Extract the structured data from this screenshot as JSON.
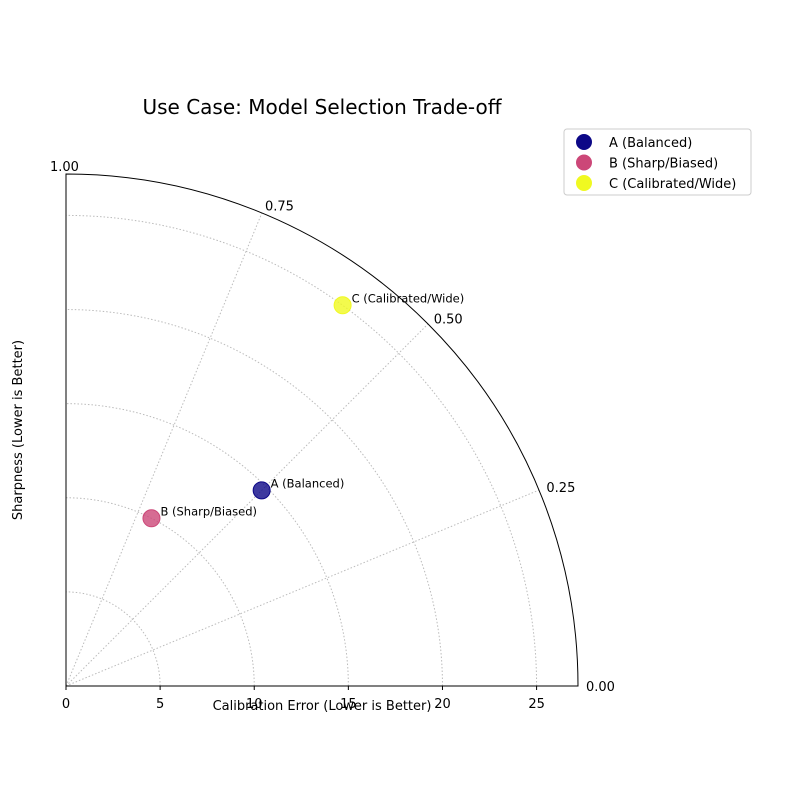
{
  "chart_data": {
    "type": "scatter",
    "title": "Use Case: Model Selection Trade-off",
    "xlabel": "Calibration Error (Lower is Better)",
    "ylabel": "Sharpness (Lower is Better)",
    "xlim": [
      0,
      27.2
    ],
    "x_ticks": [
      "0",
      "5",
      "10",
      "15",
      "20",
      "25"
    ],
    "angle_ticks": [
      "0.00",
      "0.25",
      "0.50",
      "0.75",
      "1.00"
    ],
    "grid": true,
    "legend_position": "upper-right, outside plot",
    "series": [
      {
        "name": "A (Balanced)",
        "label": "A (Balanced)",
        "color": "#0d0887",
        "radius": 14.7,
        "angle": 0.5
      },
      {
        "name": "B (Sharp/Biased)",
        "label": "B (Sharp/Biased)",
        "color": "#cc4778",
        "radius": 10.0,
        "angle": 0.7
      },
      {
        "name": "C (Calibrated/Wide)",
        "label": "C (Calibrated/Wide)",
        "color": "#f0f921",
        "radius": 25.0,
        "angle": 0.6
      }
    ]
  }
}
